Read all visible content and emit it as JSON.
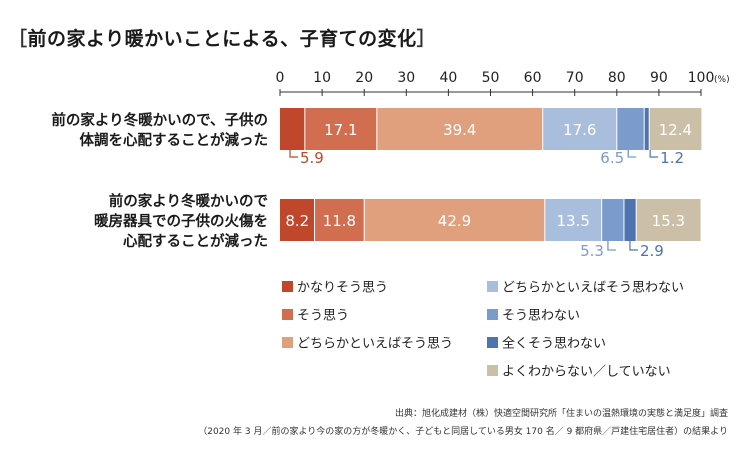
{
  "title": {
    "open": "［",
    "text": "前の家より暖かいことによる、子育ての変化",
    "close": "］"
  },
  "chart_data": {
    "type": "bar",
    "orientation": "horizontal",
    "stacked": true,
    "xlim": [
      0,
      100
    ],
    "x_ticks": [
      0,
      10,
      20,
      30,
      40,
      50,
      60,
      70,
      80,
      90,
      100
    ],
    "x_unit": "(%)",
    "legend_position": "bottom",
    "categories": [
      [
        "前の家より冬暖かいので、子供の",
        "体調を心配することが減った"
      ],
      [
        "前の家より冬暖かいので",
        "暖房器具での子供の火傷を",
        "心配することが減った"
      ]
    ],
    "series": [
      {
        "name": "かなりそう思う",
        "color": "#c0462c",
        "values": [
          5.9,
          8.2
        ]
      },
      {
        "name": "そう思う",
        "color": "#d26e50",
        "values": [
          17.1,
          11.8
        ]
      },
      {
        "name": "どちらかといえばそう思う",
        "color": "#e0a07e",
        "values": [
          39.4,
          42.9
        ]
      },
      {
        "name": "どちらかといえばそう思わない",
        "color": "#a9bedd",
        "values": [
          17.6,
          13.5
        ]
      },
      {
        "name": "そう思わない",
        "color": "#7b9bcc",
        "values": [
          6.5,
          5.3
        ]
      },
      {
        "name": "全くそう思わない",
        "color": "#4e73b1",
        "values": [
          1.2,
          2.9
        ]
      },
      {
        "name": "よくわからない／していない",
        "color": "#cbbfa8",
        "values": [
          12.4,
          15.3
        ]
      }
    ],
    "inside_label_series": [
      [
        false,
        true,
        true,
        true,
        false,
        false,
        true
      ],
      [
        true,
        true,
        true,
        true,
        false,
        false,
        true
      ]
    ],
    "callout_series": [
      [
        0,
        4,
        5
      ],
      [
        4,
        5
      ]
    ]
  },
  "source": {
    "line1": "出典：旭化成建材（株）快適空間研究所「住まいの温熱環境の実態と満足度」調査",
    "line2": "（2020 年 3 月／前の家より今の家の方が冬暖かく、子どもと同居している男女 170 名／ 9 都府県／戸建住宅居住者）の結果より"
  }
}
